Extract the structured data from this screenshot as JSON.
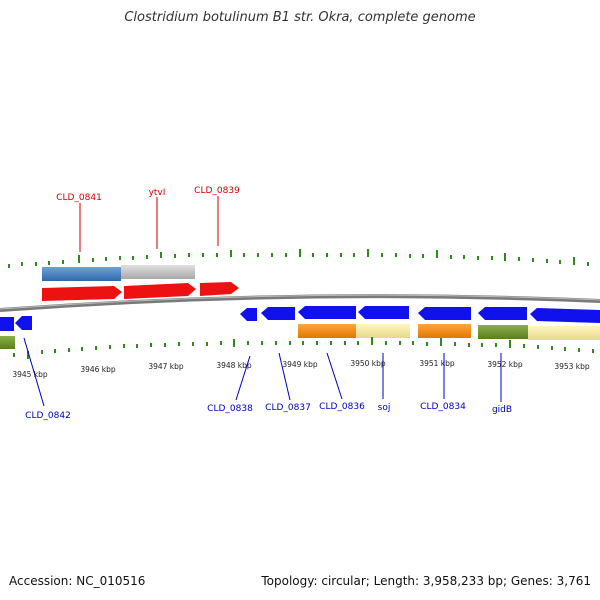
{
  "title": "Clostridium botulinum B1 str. Okra, complete genome",
  "footer": {
    "accession": "Accession: NC_010516",
    "summary": "Topology: circular; Length: 3,958,233 bp; Genes: 3,761"
  },
  "colors": {
    "forward_gene": "#ee1111",
    "reverse_gene": "#1111ee",
    "label_red": "#cc0000",
    "label_blue": "#0000bb",
    "tick": "#338822",
    "backbone": "#888888"
  },
  "top_labels": [
    "CLD_0841",
    "ytvI",
    "CLD_0839"
  ],
  "bottom_labels": [
    "CLD_0842",
    "CLD_0838",
    "CLD_0837",
    "CLD_0836",
    "soj",
    "CLD_0834",
    "gidB"
  ],
  "kbp_labels": [
    "3945 kbp",
    "3946 kbp",
    "3947 kbp",
    "3948 kbp",
    "3949 kbp",
    "3950 kbp",
    "3951 kbp",
    "3952 kbp",
    "3953 kbp"
  ]
}
